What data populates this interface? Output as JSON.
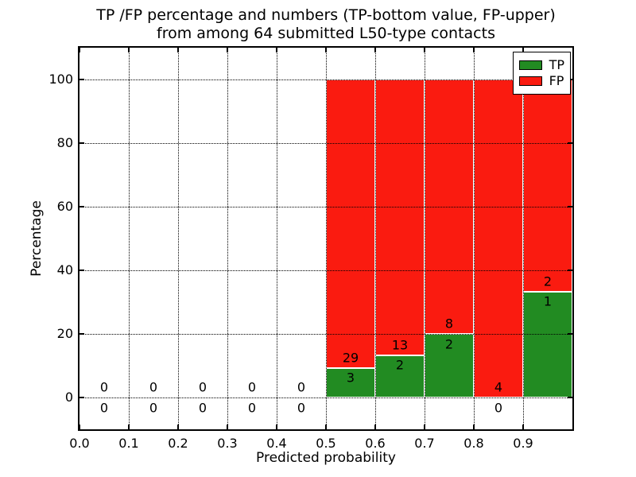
{
  "figure": {
    "title_line1": "TP /FP percentage and numbers (TP-bottom value, FP-upper)",
    "title_line2": "from among 64 submitted L50-type contacts"
  },
  "chart_data": {
    "type": "bar",
    "stacked": true,
    "title": "TP /FP percentage and numbers (TP-bottom value, FP-upper) from among 64 submitted L50-type contacts",
    "xlabel": "Predicted probability",
    "ylabel": "Percentage",
    "xlim": [
      0.0,
      1.0
    ],
    "ylim": [
      -10,
      110
    ],
    "grid": "dotted, drawn above bars",
    "total_contacts": 64,
    "xticks": [
      {
        "v": 0.0,
        "label": "0.0"
      },
      {
        "v": 0.1,
        "label": "0.1"
      },
      {
        "v": 0.2,
        "label": "0.2"
      },
      {
        "v": 0.3,
        "label": "0.3"
      },
      {
        "v": 0.4,
        "label": "0.4"
      },
      {
        "v": 0.5,
        "label": "0.5"
      },
      {
        "v": 0.6,
        "label": "0.6"
      },
      {
        "v": 0.7,
        "label": "0.7"
      },
      {
        "v": 0.8,
        "label": "0.8"
      },
      {
        "v": 0.9,
        "label": "0.9"
      }
    ],
    "yticks": [
      {
        "v": 0,
        "label": "0"
      },
      {
        "v": 20,
        "label": "20"
      },
      {
        "v": 40,
        "label": "40"
      },
      {
        "v": 60,
        "label": "60"
      },
      {
        "v": 80,
        "label": "80"
      },
      {
        "v": 100,
        "label": "100"
      }
    ],
    "colors": {
      "tp": "#228b22",
      "fp": "#fa1b10",
      "bar_edge": "#ffffff",
      "text": "#000000"
    },
    "legend": {
      "position": "upper-right",
      "entries": [
        {
          "label": "TP",
          "color": "#228b22"
        },
        {
          "label": "FP",
          "color": "#fa1b10"
        }
      ]
    },
    "bins": [
      {
        "x_start": 0.0,
        "x_end": 0.1,
        "tp": 0,
        "fp": 0
      },
      {
        "x_start": 0.1,
        "x_end": 0.2,
        "tp": 0,
        "fp": 0
      },
      {
        "x_start": 0.2,
        "x_end": 0.3,
        "tp": 0,
        "fp": 0
      },
      {
        "x_start": 0.3,
        "x_end": 0.4,
        "tp": 0,
        "fp": 0
      },
      {
        "x_start": 0.4,
        "x_end": 0.5,
        "tp": 0,
        "fp": 0
      },
      {
        "x_start": 0.5,
        "x_end": 0.6,
        "tp": 3,
        "fp": 29
      },
      {
        "x_start": 0.6,
        "x_end": 0.7,
        "tp": 2,
        "fp": 13
      },
      {
        "x_start": 0.7,
        "x_end": 0.8,
        "tp": 2,
        "fp": 8
      },
      {
        "x_start": 0.8,
        "x_end": 0.9,
        "tp": 0,
        "fp": 4
      },
      {
        "x_start": 0.9,
        "x_end": 1.0,
        "tp": 1,
        "fp": 2
      }
    ]
  }
}
